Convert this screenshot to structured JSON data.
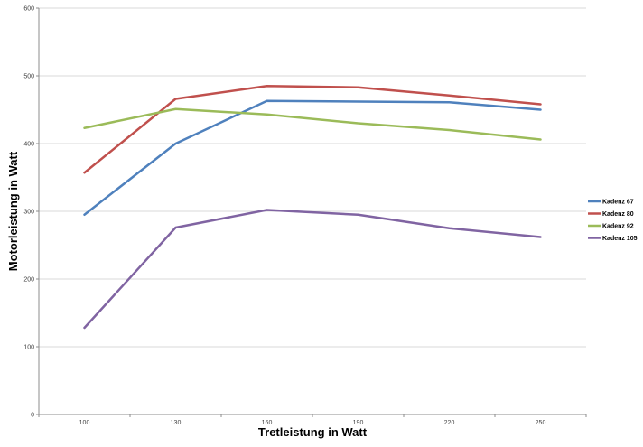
{
  "chart_data": {
    "type": "line",
    "title": "",
    "xlabel": "Tretleistung in Watt",
    "ylabel": "Motorleistung in Watt",
    "categories": [
      100,
      130,
      160,
      190,
      220,
      250
    ],
    "ylim": [
      0,
      600
    ],
    "ytick_interval": 100,
    "grid": true,
    "legend_position": "right",
    "colors": {
      "grid": "#d9d9d9",
      "axis": "#8c8c8c",
      "tick_text": "#3f3f3f",
      "background": "#ffffff"
    },
    "series": [
      {
        "name": "Kadenz 67",
        "color": "#4f81bd",
        "values": [
          295,
          400,
          463,
          462,
          461,
          450
        ]
      },
      {
        "name": "Kadenz 80",
        "color": "#c0504d",
        "values": [
          357,
          466,
          485,
          483,
          471,
          458
        ]
      },
      {
        "name": "Kadenz 92",
        "color": "#9bbb59",
        "values": [
          423,
          451,
          443,
          430,
          420,
          406
        ]
      },
      {
        "name": "Kadenz 105",
        "color": "#8064a2",
        "values": [
          128,
          276,
          302,
          295,
          275,
          262
        ]
      }
    ]
  }
}
